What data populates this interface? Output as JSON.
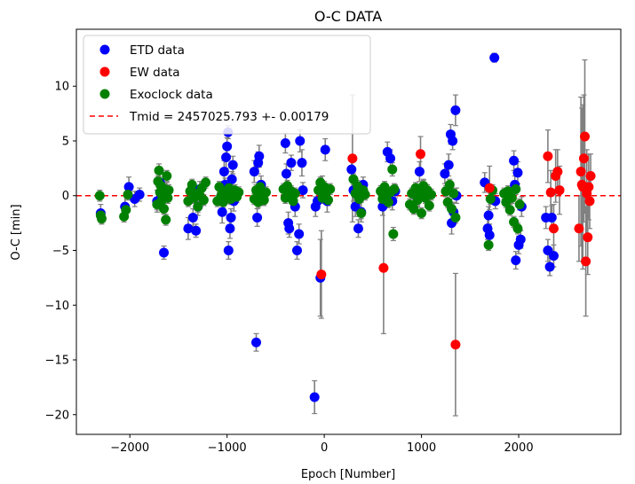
{
  "chart_data": {
    "type": "scatter",
    "title": "O-C DATA",
    "xlabel": "Epoch [Number]",
    "ylabel": "O-C [min]",
    "xlim": [
      -2550,
      3050
    ],
    "ylim": [
      -21.8,
      15.2
    ],
    "xticks": [
      -2000,
      -1000,
      0,
      1000,
      2000
    ],
    "xtick_labels": [
      "−2000",
      "−1000",
      "0",
      "1000",
      "2000"
    ],
    "yticks": [
      10,
      5,
      0,
      -5,
      -10,
      -15,
      -20
    ],
    "ytick_labels": [
      "10",
      "5",
      "0",
      "−5",
      "−10",
      "−15",
      "−20"
    ],
    "grid": false,
    "legend_position": "top-left",
    "reference_line": {
      "label": "Tmid = 2457025.793 +- 0.00179",
      "y": 0,
      "color": "#ff0000",
      "style": "dashed"
    },
    "errorbar_color": "#808080",
    "series": [
      {
        "name": "ETD data",
        "color": "#0000ff",
        "points": [
          [
            -2300,
            -1.6,
            0.8
          ],
          [
            -2050,
            -1.0,
            1.0
          ],
          [
            -2010,
            0.8,
            0.9
          ],
          [
            -1950,
            -0.3,
            0.7
          ],
          [
            -1900,
            0.1,
            0.6
          ],
          [
            -1720,
            -0.5,
            1.0
          ],
          [
            -1690,
            1.2,
            1.2
          ],
          [
            -1650,
            -5.2,
            0.6
          ],
          [
            -1620,
            0.4,
            0.8
          ],
          [
            -1400,
            -3.0,
            1.0
          ],
          [
            -1350,
            -2.0,
            0.8
          ],
          [
            -1320,
            -3.2,
            0.6
          ],
          [
            -1300,
            -1.0,
            0.8
          ],
          [
            -1280,
            0.6,
            0.7
          ],
          [
            -1050,
            -1.5,
            1.0
          ],
          [
            -1030,
            2.2,
            1.0
          ],
          [
            -1010,
            3.5,
            1.0
          ],
          [
            -1000,
            4.5,
            0.8
          ],
          [
            -990,
            5.8,
            0.6
          ],
          [
            -985,
            -5.0,
            0.8
          ],
          [
            -970,
            -3.0,
            0.9
          ],
          [
            -960,
            -2.0,
            0.8
          ],
          [
            -950,
            1.5,
            0.7
          ],
          [
            -940,
            2.8,
            0.8
          ],
          [
            -930,
            -0.5,
            0.9
          ],
          [
            -1000,
            0.0,
            0.7
          ],
          [
            -1020,
            1.0,
            0.6
          ],
          [
            -720,
            2.2,
            1.0
          ],
          [
            -700,
            -13.4,
            0.8
          ],
          [
            -690,
            -2.0,
            0.8
          ],
          [
            -680,
            3.0,
            1.0
          ],
          [
            -670,
            3.6,
            1.0
          ],
          [
            -650,
            1.0,
            0.8
          ],
          [
            -630,
            -0.2,
            0.7
          ],
          [
            -400,
            4.8,
            0.9
          ],
          [
            -390,
            2.0,
            0.9
          ],
          [
            -370,
            -2.5,
            1.0
          ],
          [
            -360,
            -3.0,
            0.8
          ],
          [
            -340,
            3.0,
            0.7
          ],
          [
            -300,
            -1.0,
            0.9
          ],
          [
            -280,
            -5.0,
            0.8
          ],
          [
            -260,
            -3.5,
            0.9
          ],
          [
            -250,
            5.0,
            1.0
          ],
          [
            -230,
            3.0,
            1.2
          ],
          [
            -220,
            0.5,
            0.7
          ],
          [
            -100,
            -18.4,
            1.5
          ],
          [
            -90,
            -1.0,
            0.9
          ],
          [
            -70,
            -0.5,
            0.7
          ],
          [
            -40,
            -7.5,
            3.5
          ],
          [
            -20,
            0.8,
            1.0
          ],
          [
            10,
            4.2,
            1.0
          ],
          [
            30,
            -0.5,
            1.0
          ],
          [
            280,
            2.4,
            1.0
          ],
          [
            300,
            0.5,
            1.0
          ],
          [
            320,
            -1.0,
            0.9
          ],
          [
            350,
            -3.0,
            0.8
          ],
          [
            380,
            -1.5,
            0.9
          ],
          [
            400,
            1.0,
            0.7
          ],
          [
            600,
            -1.0,
            0.8
          ],
          [
            650,
            4.0,
            0.9
          ],
          [
            680,
            3.4,
            0.8
          ],
          [
            700,
            -0.5,
            0.8
          ],
          [
            730,
            0.4,
            0.6
          ],
          [
            960,
            -0.3,
            0.7
          ],
          [
            980,
            2.2,
            0.9
          ],
          [
            1000,
            0.5,
            0.6
          ],
          [
            1020,
            0.8,
            0.7
          ],
          [
            1240,
            2.0,
            0.9
          ],
          [
            1280,
            2.8,
            1.0
          ],
          [
            1300,
            5.6,
            0.9
          ],
          [
            1320,
            5.0,
            0.8
          ],
          [
            1350,
            7.8,
            1.4
          ],
          [
            1310,
            -2.5,
            1.0
          ],
          [
            1330,
            -1.5,
            0.9
          ],
          [
            1360,
            0.0,
            0.7
          ],
          [
            1650,
            1.2,
            0.9
          ],
          [
            1680,
            -3.0,
            1.0
          ],
          [
            1700,
            -3.6,
            1.0
          ],
          [
            1690,
            -1.8,
            0.8
          ],
          [
            1750,
            12.6,
            0.4
          ],
          [
            1760,
            -0.5,
            0.7
          ],
          [
            1950,
            3.2,
            0.9
          ],
          [
            1960,
            1.0,
            0.8
          ],
          [
            1970,
            -5.9,
            0.8
          ],
          [
            1990,
            2.1,
            1.0
          ],
          [
            2000,
            -4.5,
            0.8
          ],
          [
            2020,
            -4.0,
            0.8
          ],
          [
            2030,
            -1.0,
            0.9
          ],
          [
            2280,
            -2.0,
            1.0
          ],
          [
            2300,
            -5.0,
            1.0
          ],
          [
            2320,
            -6.5,
            0.8
          ],
          [
            2340,
            -2.0,
            1.1
          ],
          [
            2360,
            -5.5,
            1.0
          ]
        ]
      },
      {
        "name": "EW data",
        "color": "#ff0000",
        "points": [
          [
            -30,
            -7.2,
            4.0
          ],
          [
            290,
            3.4,
            5.8
          ],
          [
            610,
            -6.6,
            6.0
          ],
          [
            990,
            3.8,
            1.6
          ],
          [
            1350,
            -13.6,
            6.5
          ],
          [
            1700,
            0.7,
            2.0
          ],
          [
            2300,
            3.6,
            2.4
          ],
          [
            2330,
            0.3,
            2.0
          ],
          [
            2360,
            -3.0,
            2.2
          ],
          [
            2380,
            1.8,
            2.4
          ],
          [
            2400,
            2.2,
            2.0
          ],
          [
            2420,
            0.5,
            2.2
          ],
          [
            2620,
            -3.0,
            3.0
          ],
          [
            2640,
            2.2,
            6.8
          ],
          [
            2650,
            1.0,
            7.0
          ],
          [
            2660,
            0.8,
            7.5
          ],
          [
            2670,
            3.4,
            5.8
          ],
          [
            2680,
            5.4,
            7.0
          ],
          [
            2690,
            -6.0,
            5.0
          ],
          [
            2700,
            0.2,
            4.0
          ],
          [
            2710,
            -3.8,
            3.4
          ],
          [
            2720,
            0.8,
            3.0
          ],
          [
            2730,
            -0.5,
            2.5
          ],
          [
            2740,
            1.8,
            2.0
          ]
        ]
      },
      {
        "name": "Exoclock data",
        "color": "#008000",
        "points": [
          [
            -2310,
            0.0,
            0.5
          ],
          [
            -2300,
            -1.8,
            0.5
          ],
          [
            -2290,
            -2.1,
            0.5
          ],
          [
            -2060,
            -1.9,
            0.5
          ],
          [
            -2040,
            -1.3,
            0.5
          ],
          [
            -2020,
            0.1,
            0.5
          ],
          [
            -1720,
            -0.8,
            0.5
          ],
          [
            -1710,
            1.3,
            0.5
          ],
          [
            -1700,
            2.3,
            0.6
          ],
          [
            -1690,
            0.3,
            0.5
          ],
          [
            -1680,
            0.9,
            0.5
          ],
          [
            -1670,
            -0.4,
            0.5
          ],
          [
            -1660,
            0.0,
            0.5
          ],
          [
            -1650,
            -1.2,
            0.5
          ],
          [
            -1640,
            0.6,
            0.5
          ],
          [
            -1630,
            -2.2,
            0.5
          ],
          [
            -1620,
            1.8,
            0.5
          ],
          [
            -1610,
            -0.2,
            0.5
          ],
          [
            -1600,
            0.5,
            0.5
          ],
          [
            -1400,
            -0.5,
            0.5
          ],
          [
            -1380,
            0.4,
            0.5
          ],
          [
            -1360,
            1.0,
            0.5
          ],
          [
            -1340,
            -0.2,
            0.5
          ],
          [
            -1320,
            0.2,
            0.5
          ],
          [
            -1300,
            -1.0,
            0.5
          ],
          [
            -1280,
            0.0,
            0.5
          ],
          [
            -1260,
            0.7,
            0.5
          ],
          [
            -1240,
            -0.4,
            0.5
          ],
          [
            -1220,
            1.2,
            0.5
          ],
          [
            -1100,
            -0.5,
            0.5
          ],
          [
            -1080,
            0.8,
            0.5
          ],
          [
            -1060,
            0.0,
            0.5
          ],
          [
            -1040,
            -0.6,
            0.5
          ],
          [
            -1020,
            0.4,
            0.5
          ],
          [
            -1000,
            -0.2,
            0.5
          ],
          [
            -980,
            0.7,
            0.5
          ],
          [
            -960,
            -0.3,
            0.5
          ],
          [
            -940,
            0.2,
            0.5
          ],
          [
            -920,
            0.5,
            0.5
          ],
          [
            -900,
            -0.1,
            0.5
          ],
          [
            -880,
            0.3,
            0.5
          ],
          [
            -720,
            -0.3,
            0.5
          ],
          [
            -700,
            0.5,
            0.5
          ],
          [
            -680,
            -0.6,
            0.5
          ],
          [
            -660,
            0.8,
            0.5
          ],
          [
            -640,
            0.1,
            0.5
          ],
          [
            -620,
            -0.4,
            0.5
          ],
          [
            -600,
            0.3,
            0.5
          ],
          [
            -420,
            0.6,
            0.5
          ],
          [
            -400,
            -0.2,
            0.5
          ],
          [
            -380,
            0.9,
            0.5
          ],
          [
            -360,
            0.0,
            0.5
          ],
          [
            -340,
            0.4,
            0.5
          ],
          [
            -320,
            -0.5,
            0.5
          ],
          [
            -300,
            0.2,
            0.5
          ],
          [
            -60,
            0.5,
            0.5
          ],
          [
            -40,
            1.2,
            0.5
          ],
          [
            -20,
            -0.2,
            0.5
          ],
          [
            0,
            0.8,
            0.5
          ],
          [
            20,
            0.3,
            0.5
          ],
          [
            40,
            -0.4,
            0.5
          ],
          [
            60,
            0.6,
            0.5
          ],
          [
            300,
            1.5,
            0.5
          ],
          [
            320,
            0.2,
            0.5
          ],
          [
            340,
            0.9,
            0.5
          ],
          [
            360,
            -0.3,
            0.5
          ],
          [
            380,
            -1.6,
            0.5
          ],
          [
            400,
            0.5,
            0.5
          ],
          [
            420,
            0.1,
            0.5
          ],
          [
            580,
            0.4,
            0.5
          ],
          [
            600,
            -0.3,
            0.5
          ],
          [
            620,
            0.8,
            0.5
          ],
          [
            640,
            0.0,
            0.5
          ],
          [
            660,
            -0.6,
            0.5
          ],
          [
            680,
            0.3,
            0.5
          ],
          [
            700,
            2.4,
            0.6
          ],
          [
            710,
            -3.5,
            0.6
          ],
          [
            720,
            0.6,
            0.5
          ],
          [
            880,
            -0.8,
            0.5
          ],
          [
            900,
            0.2,
            0.5
          ],
          [
            920,
            -1.2,
            0.5
          ],
          [
            940,
            0.7,
            0.5
          ],
          [
            960,
            -0.4,
            0.5
          ],
          [
            980,
            0.3,
            0.5
          ],
          [
            1000,
            -1.6,
            0.5
          ],
          [
            1020,
            0.9,
            0.5
          ],
          [
            1040,
            -0.2,
            0.5
          ],
          [
            1060,
            0.5,
            0.5
          ],
          [
            1080,
            -0.9,
            0.5
          ],
          [
            1100,
            0.1,
            0.5
          ],
          [
            1250,
            0.4,
            0.5
          ],
          [
            1270,
            -0.6,
            0.5
          ],
          [
            1290,
            1.0,
            0.5
          ],
          [
            1310,
            -1.2,
            0.5
          ],
          [
            1330,
            0.2,
            0.5
          ],
          [
            1350,
            -2.0,
            0.5
          ],
          [
            1690,
            -4.5,
            0.5
          ],
          [
            1710,
            -0.3,
            0.5
          ],
          [
            1730,
            0.5,
            0.5
          ],
          [
            1850,
            0.2,
            0.5
          ],
          [
            1870,
            -0.6,
            0.5
          ],
          [
            1890,
            0.4,
            0.5
          ],
          [
            1910,
            -1.3,
            0.5
          ],
          [
            1930,
            -0.2,
            0.5
          ],
          [
            1950,
            -2.4,
            0.5
          ],
          [
            1970,
            0.6,
            0.5
          ],
          [
            1990,
            -3.0,
            0.5
          ],
          [
            2010,
            -0.8,
            0.5
          ]
        ]
      }
    ]
  }
}
